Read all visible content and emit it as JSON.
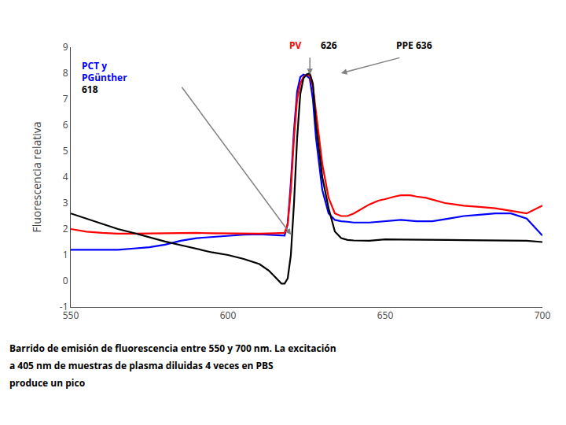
{
  "chart_data": {
    "type": "line",
    "ylabel": "Fluorescencia relativa",
    "xlim": [
      550,
      700
    ],
    "ylim": [
      -1,
      9
    ],
    "xticks": [
      550,
      600,
      650,
      700
    ],
    "yticks": [
      -1,
      0,
      1,
      2,
      3,
      4,
      5,
      6,
      7,
      8,
      9
    ],
    "grid": false,
    "series": [
      {
        "color": "blue",
        "x": [
          550,
          555,
          560,
          565,
          570,
          575,
          580,
          585,
          590,
          595,
          600,
          605,
          610,
          615,
          618,
          619,
          620,
          621,
          622,
          623,
          624,
          625,
          626,
          627,
          628,
          630,
          632,
          634,
          636,
          638,
          640,
          645,
          650,
          655,
          660,
          665,
          670,
          675,
          680,
          685,
          690,
          695,
          700
        ],
        "values": [
          1.2,
          1.2,
          1.2,
          1.2,
          1.25,
          1.3,
          1.4,
          1.55,
          1.65,
          1.7,
          1.75,
          1.78,
          1.8,
          1.78,
          1.75,
          2.2,
          3.8,
          5.8,
          7.3,
          7.85,
          7.95,
          7.9,
          7.8,
          7.0,
          5.5,
          3.5,
          2.6,
          2.35,
          2.3,
          2.28,
          2.25,
          2.25,
          2.3,
          2.35,
          2.3,
          2.3,
          2.4,
          2.5,
          2.55,
          2.6,
          2.6,
          2.4,
          1.75
        ]
      },
      {
        "color": "red",
        "x": [
          550,
          555,
          560,
          565,
          570,
          575,
          580,
          585,
          590,
          595,
          600,
          605,
          610,
          615,
          618,
          619,
          620,
          621,
          622,
          623,
          624,
          625,
          626,
          627,
          628,
          630,
          632,
          634,
          636,
          638,
          640,
          643,
          645,
          648,
          650,
          653,
          655,
          658,
          660,
          663,
          666,
          669,
          672,
          675,
          680,
          685,
          690,
          695,
          700
        ],
        "values": [
          2.0,
          1.9,
          1.85,
          1.82,
          1.82,
          1.83,
          1.84,
          1.85,
          1.85,
          1.84,
          1.83,
          1.82,
          1.82,
          1.84,
          1.85,
          2.2,
          3.5,
          5.5,
          7.0,
          7.6,
          7.85,
          7.95,
          7.9,
          7.5,
          6.5,
          4.5,
          3.2,
          2.6,
          2.5,
          2.5,
          2.6,
          2.8,
          2.95,
          3.1,
          3.15,
          3.25,
          3.3,
          3.3,
          3.25,
          3.2,
          3.1,
          3.0,
          2.95,
          2.9,
          2.85,
          2.8,
          2.7,
          2.6,
          2.9
        ]
      },
      {
        "color": "black",
        "x": [
          550,
          555,
          560,
          565,
          570,
          575,
          580,
          585,
          590,
          595,
          600,
          605,
          610,
          613,
          615,
          617,
          618,
          619,
          620,
          621,
          622,
          623,
          624,
          625,
          626,
          627,
          628,
          630,
          632,
          634,
          636,
          638,
          640,
          645,
          650,
          655,
          660,
          665,
          670,
          675,
          680,
          685,
          690,
          695,
          700
        ],
        "values": [
          2.6,
          2.4,
          2.2,
          2.0,
          1.85,
          1.68,
          1.52,
          1.38,
          1.25,
          1.1,
          1.0,
          0.85,
          0.65,
          0.4,
          0.15,
          -0.1,
          -0.1,
          0.1,
          1.0,
          3.0,
          5.5,
          7.2,
          7.8,
          7.95,
          8.0,
          7.6,
          6.0,
          4.0,
          2.8,
          1.9,
          1.65,
          1.58,
          1.56,
          1.55,
          1.6,
          1.6,
          1.6,
          1.6,
          1.58,
          1.57,
          1.56,
          1.55,
          1.55,
          1.55,
          1.5
        ]
      }
    ],
    "annotations": [
      {
        "text": "PCT y",
        "color": "blue"
      },
      {
        "text": "PGünther",
        "color": "blue"
      },
      {
        "text": "618",
        "color": "black"
      },
      {
        "text": "PV",
        "color": "red"
      },
      {
        "text": "626",
        "color": "black"
      },
      {
        "text": "PPE 636",
        "color": "black"
      }
    ],
    "caption": [
      "Barrido de emisión de fluorescencia entre 550 y 700 nm. La excitación",
      "a 405 nm de muestras de plasma diluidas 4 veces en PBS",
      "produce un pico"
    ]
  }
}
